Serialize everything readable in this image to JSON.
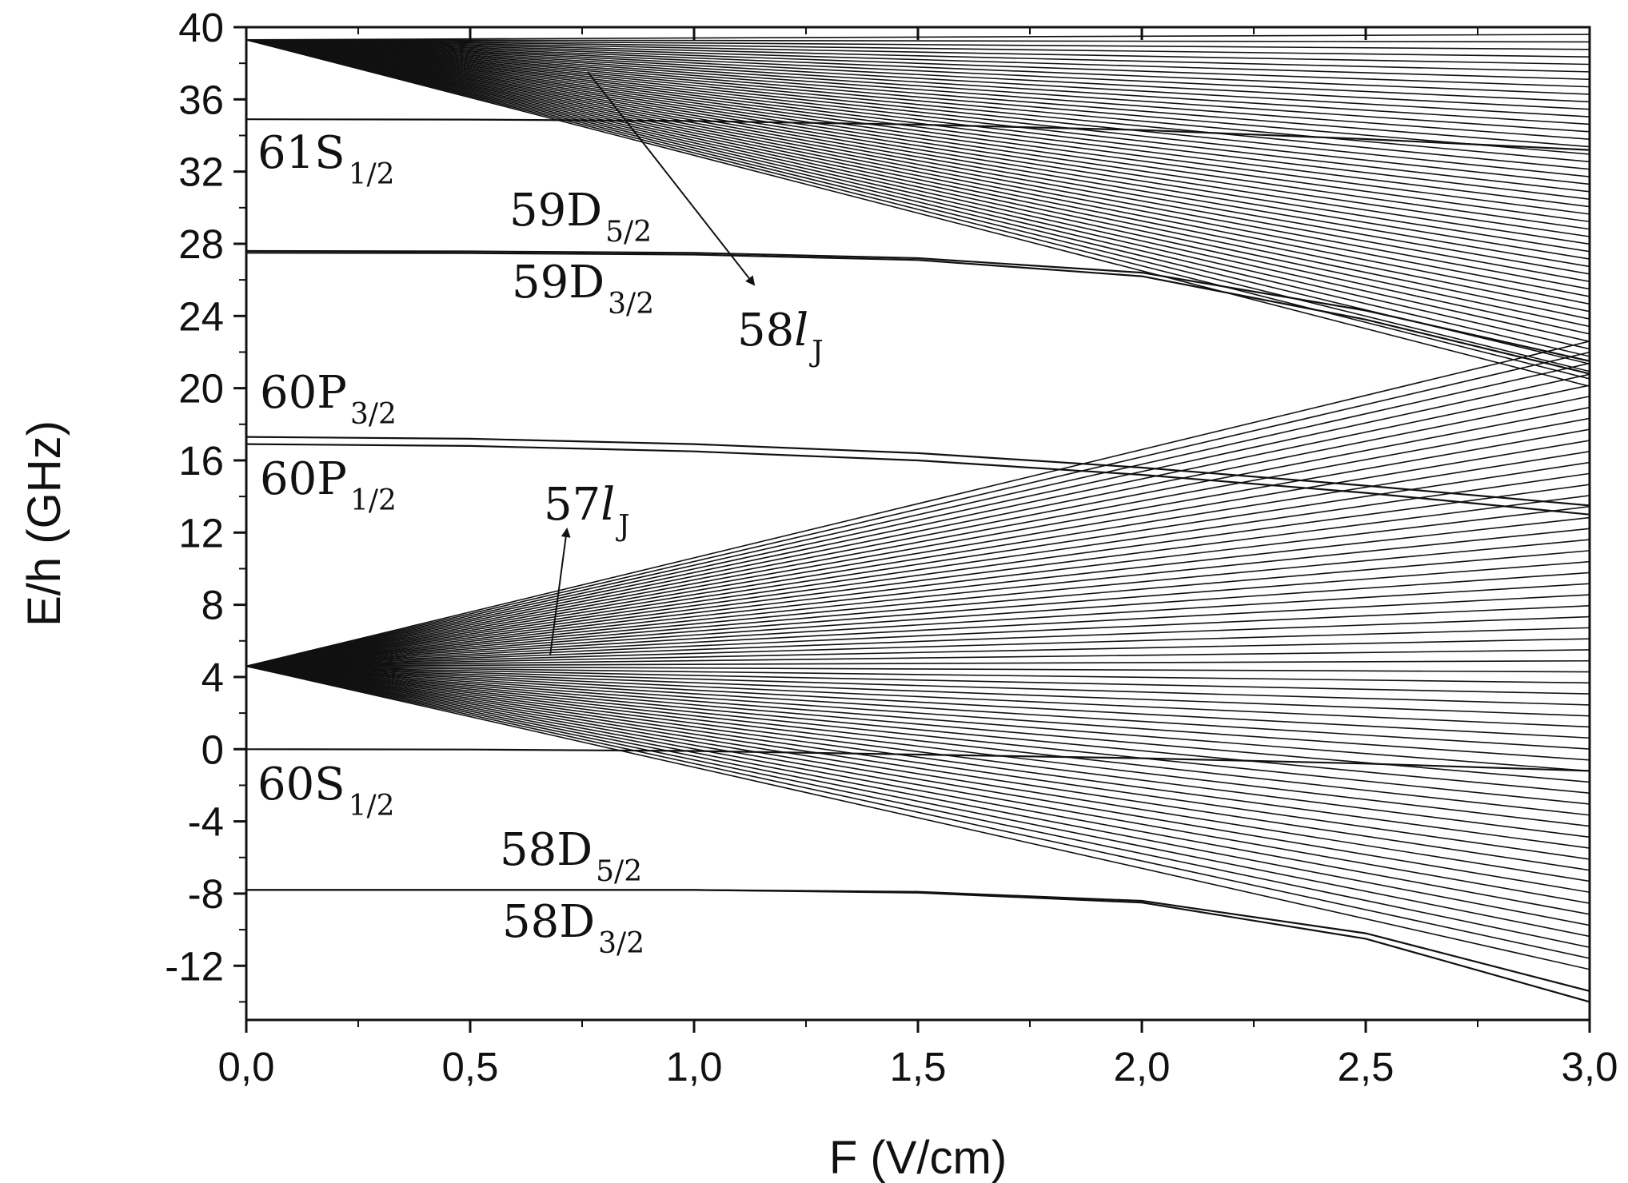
{
  "chart_data": {
    "type": "line",
    "xlabel": "F (V/cm)",
    "ylabel": "E/h (GHz)",
    "xlim": [
      0,
      3.0
    ],
    "ylim": [
      -15,
      40
    ],
    "x_ticks": [
      "0,0",
      "0,5",
      "1,0",
      "1,5",
      "2,0",
      "2,5",
      "3,0"
    ],
    "x_tick_values": [
      0,
      0.5,
      1.0,
      1.5,
      2.0,
      2.5,
      3.0
    ],
    "y_ticks": [
      "-12",
      "-8",
      "-4",
      "0",
      "4",
      "8",
      "12",
      "16",
      "20",
      "24",
      "28",
      "32",
      "36",
      "40"
    ],
    "y_tick_values": [
      -12,
      -8,
      -4,
      0,
      4,
      8,
      12,
      16,
      20,
      24,
      28,
      32,
      36,
      40
    ],
    "grid": false,
    "line_color": "#111111",
    "series": [
      {
        "x": [
          0,
          0.5,
          1.0,
          1.5,
          2.0,
          2.5,
          3.0
        ],
        "y": [
          34.9,
          34.88,
          34.8,
          34.6,
          34.3,
          33.8,
          33.2
        ]
      },
      {
        "x": [
          0,
          0.5,
          1.0,
          1.5,
          2.0,
          2.5,
          3.0
        ],
        "y": [
          27.5,
          27.48,
          27.4,
          27.1,
          26.2,
          23.8,
          20.8
        ]
      },
      {
        "x": [
          0,
          0.5,
          1.0,
          1.5,
          2.0,
          2.5,
          3.0
        ],
        "y": [
          27.6,
          27.58,
          27.5,
          27.2,
          26.4,
          24.3,
          21.5
        ]
      },
      {
        "x": [
          0,
          0.5,
          1.0,
          1.5,
          2.0,
          2.5,
          3.0
        ],
        "y": [
          17.3,
          17.2,
          16.9,
          16.4,
          15.6,
          14.6,
          13.5
        ]
      },
      {
        "x": [
          0,
          0.5,
          1.0,
          1.5,
          2.0,
          2.5,
          3.0
        ],
        "y": [
          16.9,
          16.8,
          16.5,
          16.0,
          15.2,
          14.2,
          13.0
        ]
      },
      {
        "x": [
          0,
          0.5,
          1.0,
          1.5,
          2.0,
          2.5,
          3.0
        ],
        "y": [
          0,
          -0.02,
          -0.1,
          -0.3,
          -0.5,
          -0.8,
          -1.2
        ]
      },
      {
        "x": [
          0,
          0.5,
          1.0,
          1.5,
          2.0,
          2.5,
          3.0
        ],
        "y": [
          -7.8,
          -7.8,
          -7.8,
          -7.9,
          -8.4,
          -10.2,
          -13.4
        ]
      },
      {
        "x": [
          0,
          0.5,
          1.0,
          1.5,
          2.0,
          2.5,
          3.0
        ],
        "y": [
          -7.8,
          -7.8,
          -7.8,
          -7.95,
          -8.5,
          -10.5,
          -14.0
        ]
      }
    ],
    "manifold_58": {
      "center": 39.3,
      "slope_min": -6.4,
      "slope_max": 0.1,
      "count": 48
    },
    "manifold_57": {
      "center": 4.6,
      "slope_min": -5.6,
      "slope_max": 6.0,
      "count": 58
    },
    "annotations": {
      "s61": {
        "main": "61S",
        "sub": "1/2"
      },
      "d59_52": {
        "main": "59D",
        "sub": "5/2"
      },
      "d59_32": {
        "main": "59D",
        "sub": "3/2"
      },
      "l58": {
        "main": "58",
        "it": "l",
        "sub": "J"
      },
      "p60_32": {
        "main": "60P",
        "sub": "3/2"
      },
      "p60_12": {
        "main": "60P",
        "sub": "1/2"
      },
      "l57": {
        "main": "57",
        "it": "l",
        "sub": "J"
      },
      "s60": {
        "main": "60S",
        "sub": "1/2"
      },
      "d58_52": {
        "main": "58D",
        "sub": "5/2"
      },
      "d58_32": {
        "main": "58D",
        "sub": "3/2"
      }
    }
  }
}
